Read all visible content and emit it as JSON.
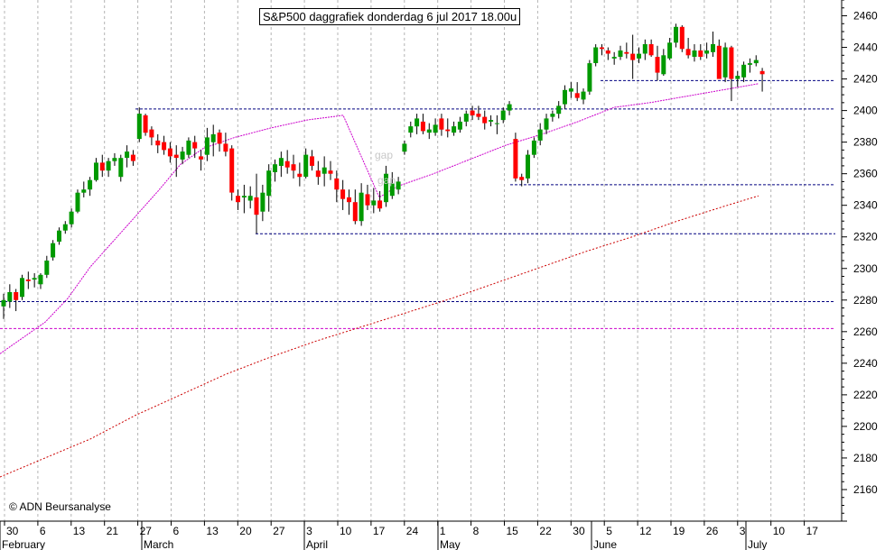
{
  "title": "S&P500 daggrafiek donderdag 6 jul 2017 18.00u",
  "copyright": "© ADN Beursanalyse",
  "annotations": [
    "gap",
    "gap"
  ],
  "colors": {
    "up_candle": "#009900",
    "down_candle": "#ff0000",
    "wick": "#000000",
    "ma_short": "#cc00cc",
    "ma_long": "#cc0000",
    "support_lines": "#000080",
    "grid": "#b4b4b4"
  },
  "chart_data": {
    "type": "candlestick",
    "title": "S&P500 daggrafiek donderdag 6 jul 2017 18.00u",
    "ylim": [
      2140,
      2470
    ],
    "y_ticks": [
      2160,
      2180,
      2200,
      2220,
      2240,
      2260,
      2280,
      2300,
      2320,
      2340,
      2360,
      2380,
      2400,
      2420,
      2440,
      2460
    ],
    "x_day_ticks": [
      "30",
      "6",
      "13",
      "21",
      "27",
      "6",
      "13",
      "20",
      "27",
      "3",
      "10",
      "17",
      "24",
      "1",
      "8",
      "15",
      "22",
      "30",
      "5",
      "12",
      "19",
      "26",
      "3",
      "10",
      "17"
    ],
    "x_months": [
      "February",
      "March",
      "April",
      "May",
      "June",
      "July"
    ],
    "grid": true,
    "candles": [
      [
        2276,
        2284,
        2268,
        2280
      ],
      [
        2279,
        2290,
        2275,
        2285
      ],
      [
        2285,
        2287,
        2273,
        2280
      ],
      [
        2282,
        2296,
        2280,
        2294
      ],
      [
        2293,
        2298,
        2287,
        2292
      ],
      [
        2293,
        2297,
        2288,
        2294
      ],
      [
        2290,
        2297,
        2287,
        2296
      ],
      [
        2296,
        2308,
        2294,
        2305
      ],
      [
        2307,
        2318,
        2305,
        2316
      ],
      [
        2317,
        2326,
        2315,
        2324
      ],
      [
        2324,
        2330,
        2322,
        2328
      ],
      [
        2328,
        2338,
        2326,
        2336
      ],
      [
        2336,
        2350,
        2335,
        2348
      ],
      [
        2348,
        2355,
        2345,
        2350
      ],
      [
        2350,
        2358,
        2346,
        2356
      ],
      [
        2356,
        2370,
        2355,
        2367
      ],
      [
        2367,
        2372,
        2358,
        2362
      ],
      [
        2362,
        2370,
        2358,
        2368
      ],
      [
        2368,
        2373,
        2365,
        2370
      ],
      [
        2358,
        2372,
        2355,
        2370
      ],
      [
        2370,
        2378,
        2364,
        2374
      ],
      [
        2372,
        2375,
        2365,
        2368
      ],
      [
        2382,
        2402,
        2380,
        2398
      ],
      [
        2397,
        2398,
        2384,
        2386
      ],
      [
        2388,
        2390,
        2378,
        2383
      ],
      [
        2381,
        2385,
        2373,
        2378
      ],
      [
        2380,
        2384,
        2372,
        2375
      ],
      [
        2376,
        2380,
        2367,
        2371
      ],
      [
        2372,
        2378,
        2358,
        2370
      ],
      [
        2369,
        2377,
        2366,
        2374
      ],
      [
        2372,
        2383,
        2370,
        2381
      ],
      [
        2380,
        2384,
        2370,
        2376
      ],
      [
        2371,
        2375,
        2362,
        2369
      ],
      [
        2372,
        2389,
        2368,
        2383
      ],
      [
        2380,
        2391,
        2371,
        2385
      ],
      [
        2386,
        2388,
        2374,
        2379
      ],
      [
        2379,
        2386,
        2371,
        2374
      ],
      [
        2376,
        2378,
        2343,
        2348
      ],
      [
        2346,
        2350,
        2337,
        2342
      ],
      [
        2345,
        2353,
        2335,
        2346
      ],
      [
        2343,
        2352,
        2338,
        2346
      ],
      [
        2345,
        2360,
        2322,
        2334
      ],
      [
        2336,
        2353,
        2330,
        2348
      ],
      [
        2346,
        2366,
        2336,
        2362
      ],
      [
        2361,
        2369,
        2355,
        2366
      ],
      [
        2365,
        2374,
        2358,
        2370
      ],
      [
        2368,
        2375,
        2360,
        2364
      ],
      [
        2366,
        2372,
        2357,
        2362
      ],
      [
        2360,
        2367,
        2352,
        2358
      ],
      [
        2358,
        2376,
        2357,
        2372
      ],
      [
        2371,
        2375,
        2362,
        2365
      ],
      [
        2362,
        2368,
        2353,
        2358
      ],
      [
        2360,
        2371,
        2352,
        2364
      ],
      [
        2362,
        2368,
        2356,
        2360
      ],
      [
        2357,
        2362,
        2342,
        2350
      ],
      [
        2350,
        2356,
        2337,
        2344
      ],
      [
        2345,
        2350,
        2334,
        2342
      ],
      [
        2342,
        2350,
        2328,
        2330
      ],
      [
        2330,
        2354,
        2327,
        2348
      ],
      [
        2347,
        2353,
        2337,
        2340
      ],
      [
        2340,
        2351,
        2335,
        2343
      ],
      [
        2343,
        2349,
        2336,
        2338
      ],
      [
        2342,
        2365,
        2339,
        2360
      ],
      [
        2346,
        2361,
        2344,
        2354
      ],
      [
        2350,
        2358,
        2347,
        2355
      ],
      [
        2374,
        2381,
        2372,
        2379
      ],
      [
        2386,
        2393,
        2383,
        2390
      ],
      [
        2390,
        2398,
        2385,
        2395
      ],
      [
        2393,
        2398,
        2385,
        2387
      ],
      [
        2386,
        2392,
        2382,
        2388
      ],
      [
        2386,
        2395,
        2384,
        2391
      ],
      [
        2395,
        2398,
        2384,
        2388
      ],
      [
        2388,
        2395,
        2383,
        2387
      ],
      [
        2386,
        2393,
        2384,
        2390
      ],
      [
        2388,
        2396,
        2386,
        2393
      ],
      [
        2393,
        2400,
        2390,
        2398
      ],
      [
        2400,
        2403,
        2394,
        2397
      ],
      [
        2398,
        2403,
        2394,
        2396
      ],
      [
        2396,
        2400,
        2388,
        2392
      ],
      [
        2393,
        2397,
        2390,
        2394
      ],
      [
        2392,
        2397,
        2385,
        2392
      ],
      [
        2394,
        2402,
        2392,
        2400
      ],
      [
        2400,
        2406,
        2397,
        2404
      ],
      [
        2382,
        2386,
        2355,
        2357
      ],
      [
        2358,
        2360,
        2352,
        2356
      ],
      [
        2357,
        2375,
        2354,
        2372
      ],
      [
        2372,
        2383,
        2370,
        2381
      ],
      [
        2381,
        2392,
        2378,
        2388
      ],
      [
        2388,
        2398,
        2385,
        2395
      ],
      [
        2396,
        2400,
        2393,
        2398
      ],
      [
        2398,
        2406,
        2395,
        2403
      ],
      [
        2404,
        2416,
        2401,
        2413
      ],
      [
        2412,
        2418,
        2408,
        2414
      ],
      [
        2411,
        2418,
        2406,
        2408
      ],
      [
        2407,
        2414,
        2404,
        2412
      ],
      [
        2412,
        2432,
        2410,
        2430
      ],
      [
        2430,
        2442,
        2428,
        2440
      ],
      [
        2440,
        2442,
        2435,
        2439
      ],
      [
        2438,
        2440,
        2432,
        2436
      ],
      [
        2433,
        2437,
        2429,
        2434
      ],
      [
        2434,
        2441,
        2432,
        2438
      ],
      [
        2437,
        2443,
        2433,
        2436
      ],
      [
        2436,
        2448,
        2420,
        2432
      ],
      [
        2433,
        2440,
        2430,
        2436
      ],
      [
        2436,
        2445,
        2432,
        2442
      ],
      [
        2442,
        2445,
        2434,
        2435
      ],
      [
        2434,
        2441,
        2419,
        2424
      ],
      [
        2423,
        2439,
        2422,
        2435
      ],
      [
        2433,
        2446,
        2432,
        2443
      ],
      [
        2443,
        2455,
        2440,
        2453
      ],
      [
        2453,
        2454,
        2437,
        2439
      ],
      [
        2439,
        2446,
        2433,
        2435
      ],
      [
        2434,
        2442,
        2431,
        2438
      ],
      [
        2438,
        2442,
        2432,
        2434
      ],
      [
        2436,
        2443,
        2433,
        2438
      ],
      [
        2437,
        2450,
        2434,
        2442
      ],
      [
        2441,
        2445,
        2421,
        2420
      ],
      [
        2421,
        2443,
        2418,
        2440
      ],
      [
        2440,
        2441,
        2406,
        2420
      ],
      [
        2420,
        2425,
        2415,
        2422
      ],
      [
        2421,
        2431,
        2418,
        2429
      ],
      [
        2429,
        2433,
        2424,
        2430
      ],
      [
        2430,
        2435,
        2428,
        2432
      ],
      [
        2425,
        2427,
        2412,
        2423
      ]
    ],
    "moving_average_short": [
      [
        0,
        2246
      ],
      [
        25,
        2256
      ],
      [
        50,
        2266
      ],
      [
        75,
        2281
      ],
      [
        100,
        2301
      ],
      [
        125,
        2317
      ],
      [
        150,
        2333
      ],
      [
        175,
        2349
      ],
      [
        200,
        2366
      ],
      [
        225,
        2376
      ],
      [
        260,
        2383
      ],
      [
        300,
        2389
      ],
      [
        340,
        2394
      ],
      [
        380,
        2397
      ],
      [
        420,
        2345
      ],
      [
        440,
        2352
      ],
      [
        480,
        2360
      ],
      [
        520,
        2369
      ],
      [
        560,
        2378
      ],
      [
        600,
        2385
      ],
      [
        640,
        2393
      ],
      [
        680,
        2402
      ],
      [
        720,
        2405
      ],
      [
        760,
        2409
      ],
      [
        800,
        2413
      ],
      [
        840,
        2417
      ]
    ],
    "moving_average_long": [
      [
        0,
        2168
      ],
      [
        50,
        2180
      ],
      [
        100,
        2192
      ],
      [
        150,
        2207
      ],
      [
        200,
        2220
      ],
      [
        250,
        2233
      ],
      [
        300,
        2244
      ],
      [
        350,
        2254
      ],
      [
        400,
        2263
      ],
      [
        450,
        2272
      ],
      [
        500,
        2281
      ],
      [
        550,
        2291
      ],
      [
        600,
        2301
      ],
      [
        650,
        2311
      ],
      [
        700,
        2320
      ],
      [
        750,
        2330
      ],
      [
        800,
        2339
      ],
      [
        840,
        2346
      ]
    ],
    "horizontal_lines": [
      {
        "value": 2401,
        "from": 150,
        "to": 925
      },
      {
        "value": 2419,
        "from": 665,
        "to": 925
      },
      {
        "value": 2353,
        "from": 565,
        "to": 925
      },
      {
        "value": 2322,
        "from": 283,
        "to": 925
      },
      {
        "value": 2279,
        "from": 0,
        "to": 925
      },
      {
        "value": 2262,
        "from": 0,
        "to": 925,
        "color": "ma_short"
      }
    ]
  }
}
